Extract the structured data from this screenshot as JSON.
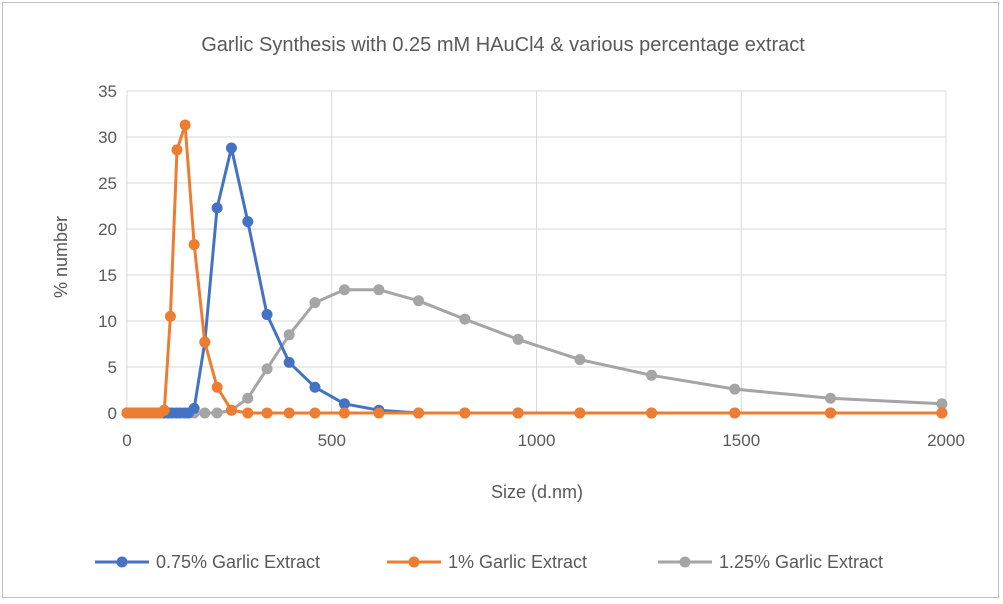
{
  "chart_data": {
    "type": "scatter",
    "title": "Garlic Synthesis with 0.25 mM  HAuCl4 & various percentage extract",
    "xlabel": "Size (d.nm)",
    "ylabel": "% number",
    "xlim": [
      0,
      2000
    ],
    "ylim": [
      0,
      35
    ],
    "x_ticks": [
      0,
      500,
      1000,
      1500,
      2000
    ],
    "y_ticks": [
      0,
      5,
      10,
      15,
      20,
      25,
      30,
      35
    ],
    "grid": true,
    "legend_position": "bottom",
    "lines_with_markers": true,
    "series": [
      {
        "name": "0.75% Garlic Extract",
        "color": "#4472C4",
        "x": [
          0,
          10,
          20,
          30,
          40,
          50,
          60,
          70,
          80,
          90,
          100,
          110,
          120,
          130,
          140,
          150,
          164,
          190,
          220,
          255,
          295,
          342,
          396,
          459,
          531,
          615,
          712,
          825,
          955,
          1106,
          1281,
          1484,
          1718,
          1990
        ],
        "y": [
          0,
          0,
          0,
          0,
          0,
          0,
          0,
          0,
          0,
          0,
          0,
          0,
          0,
          0,
          0,
          0,
          0.5,
          7.7,
          22.3,
          28.8,
          20.8,
          10.7,
          5.5,
          2.8,
          1.0,
          0.3,
          0,
          0,
          0,
          0,
          0,
          0,
          0,
          0
        ]
      },
      {
        "name": "1% Garlic Extract",
        "color": "#ED7D31",
        "x": [
          0,
          10,
          20,
          30,
          40,
          50,
          60,
          70,
          80,
          91,
          106,
          122,
          142,
          164,
          190,
          220,
          255,
          295,
          342,
          396,
          459,
          531,
          615,
          712,
          825,
          955,
          1106,
          1281,
          1484,
          1718,
          1990
        ],
        "y": [
          0,
          0,
          0,
          0,
          0,
          0,
          0,
          0,
          0,
          0.3,
          10.5,
          28.6,
          31.3,
          18.3,
          7.7,
          2.8,
          0.3,
          0,
          0,
          0,
          0,
          0,
          0,
          0,
          0,
          0,
          0,
          0,
          0,
          0,
          0
        ]
      },
      {
        "name": "1.25% Garlic Extract",
        "color": "#A5A5A5",
        "x": [
          0,
          10,
          20,
          30,
          40,
          50,
          60,
          70,
          80,
          91,
          106,
          122,
          142,
          164,
          190,
          220,
          255,
          295,
          342,
          396,
          459,
          531,
          615,
          712,
          825,
          955,
          1106,
          1281,
          1484,
          1718,
          1990
        ],
        "y": [
          0,
          0,
          0,
          0,
          0,
          0,
          0,
          0,
          0,
          0,
          0,
          0,
          0,
          0,
          0,
          0,
          0.3,
          1.6,
          4.8,
          8.5,
          12.0,
          13.4,
          13.4,
          12.2,
          10.2,
          8.0,
          5.8,
          4.1,
          2.6,
          1.6,
          1.0
        ]
      }
    ]
  }
}
